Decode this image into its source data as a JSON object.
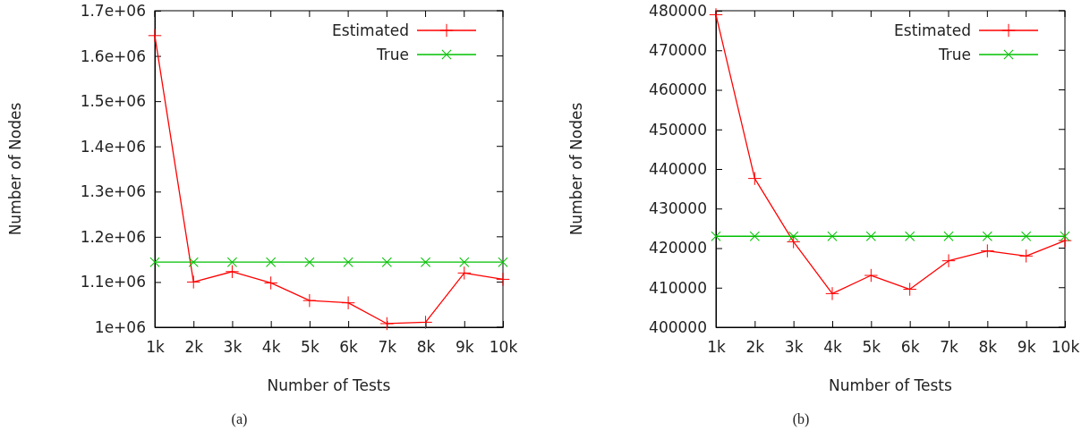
{
  "chart_data": [
    {
      "type": "line",
      "xlabel": "Number of Tests",
      "ylabel": "Number of Nodes",
      "annotations": [
        "(a)"
      ],
      "x": [
        1000,
        2000,
        3000,
        4000,
        5000,
        6000,
        7000,
        8000,
        9000,
        10000
      ],
      "xlim": [
        1000,
        10000
      ],
      "xticks": [
        {
          "value": 1000,
          "label": "1k"
        },
        {
          "value": 2000,
          "label": "2k"
        },
        {
          "value": 3000,
          "label": "3k"
        },
        {
          "value": 4000,
          "label": "4k"
        },
        {
          "value": 5000,
          "label": "5k"
        },
        {
          "value": 6000,
          "label": "6k"
        },
        {
          "value": 7000,
          "label": "7k"
        },
        {
          "value": 8000,
          "label": "8k"
        },
        {
          "value": 9000,
          "label": "9k"
        },
        {
          "value": 10000,
          "label": "10k"
        }
      ],
      "ylim": [
        1000000,
        1700000
      ],
      "yticks": [
        {
          "value": 1000000,
          "label": "1e+06"
        },
        {
          "value": 1100000,
          "label": "1.1e+06"
        },
        {
          "value": 1200000,
          "label": "1.2e+06"
        },
        {
          "value": 1300000,
          "label": "1.3e+06"
        },
        {
          "value": 1400000,
          "label": "1.4e+06"
        },
        {
          "value": 1500000,
          "label": "1.5e+06"
        },
        {
          "value": 1600000,
          "label": "1.6e+06"
        },
        {
          "value": 1700000,
          "label": "1.7e+06"
        }
      ],
      "legend": "top right",
      "marker": "cross",
      "grid": false,
      "series": [
        {
          "name": "Estimated",
          "color": "#ff0000",
          "values": [
            1645000,
            1100000,
            1123000,
            1098000,
            1059000,
            1054000,
            1008000,
            1011000,
            1120000,
            1106000
          ]
        },
        {
          "name": "True",
          "color": "#00c000",
          "values": [
            1144000,
            1144000,
            1144000,
            1144000,
            1144000,
            1144000,
            1144000,
            1144000,
            1144000,
            1144000
          ]
        }
      ]
    },
    {
      "type": "line",
      "xlabel": "Number of Tests",
      "ylabel": "Number of Nodes",
      "annotations": [
        "(b)"
      ],
      "x": [
        1000,
        2000,
        3000,
        4000,
        5000,
        6000,
        7000,
        8000,
        9000,
        10000
      ],
      "xlim": [
        1000,
        10000
      ],
      "xticks": [
        {
          "value": 1000,
          "label": "1k"
        },
        {
          "value": 2000,
          "label": "2k"
        },
        {
          "value": 3000,
          "label": "3k"
        },
        {
          "value": 4000,
          "label": "4k"
        },
        {
          "value": 5000,
          "label": "5k"
        },
        {
          "value": 6000,
          "label": "6k"
        },
        {
          "value": 7000,
          "label": "7k"
        },
        {
          "value": 8000,
          "label": "8k"
        },
        {
          "value": 9000,
          "label": "9k"
        },
        {
          "value": 10000,
          "label": "10k"
        }
      ],
      "ylim": [
        400000,
        480000
      ],
      "yticks": [
        400000,
        410000,
        420000,
        430000,
        440000,
        450000,
        460000,
        470000,
        480000
      ],
      "legend": "top right",
      "marker": "cross",
      "grid": false,
      "series": [
        {
          "name": "Estimated",
          "color": "#ff0000",
          "values": [
            479000,
            437600,
            421600,
            408500,
            413100,
            409600,
            416800,
            419300,
            418000,
            421900
          ]
        },
        {
          "name": "True",
          "color": "#00c000",
          "values": [
            423000,
            423000,
            423000,
            423000,
            423000,
            423000,
            423000,
            423000,
            423000,
            423000
          ]
        }
      ]
    }
  ]
}
